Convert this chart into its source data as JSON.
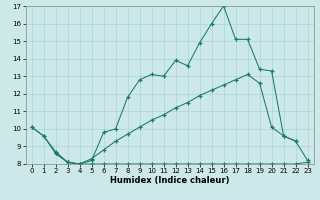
{
  "xlabel": "Humidex (Indice chaleur)",
  "bg_color": "#cce8e8",
  "line_color": "#1a7a6a",
  "grid_color": "#aad4d4",
  "xlim": [
    -0.5,
    23.5
  ],
  "ylim": [
    8,
    17
  ],
  "xticks": [
    0,
    1,
    2,
    3,
    4,
    5,
    6,
    7,
    8,
    9,
    10,
    11,
    12,
    13,
    14,
    15,
    16,
    17,
    18,
    19,
    20,
    21,
    22,
    23
  ],
  "yticks": [
    8,
    9,
    10,
    11,
    12,
    13,
    14,
    15,
    16,
    17
  ],
  "line1_x": [
    0,
    1,
    2,
    3,
    4,
    5,
    6,
    7,
    8,
    9,
    10,
    11,
    12,
    13,
    14,
    15,
    16,
    17,
    18,
    19,
    20,
    21,
    22,
    23
  ],
  "line1_y": [
    10.1,
    9.6,
    8.6,
    8.1,
    8.0,
    8.0,
    8.0,
    8.0,
    8.0,
    8.0,
    8.0,
    8.0,
    8.0,
    8.0,
    8.0,
    8.0,
    8.0,
    8.0,
    8.0,
    8.0,
    8.0,
    8.0,
    8.0,
    8.1
  ],
  "line2_x": [
    0,
    1,
    2,
    3,
    4,
    5,
    6,
    7,
    8,
    9,
    10,
    11,
    12,
    13,
    14,
    15,
    16,
    17,
    18,
    19,
    20,
    21,
    22,
    23
  ],
  "line2_y": [
    10.1,
    9.6,
    8.7,
    8.1,
    8.0,
    8.3,
    8.8,
    9.3,
    9.7,
    10.1,
    10.5,
    10.8,
    11.2,
    11.5,
    11.9,
    12.2,
    12.5,
    12.8,
    13.1,
    12.6,
    10.1,
    9.6,
    9.3,
    8.2
  ],
  "line3_x": [
    2,
    3,
    4,
    5,
    6,
    7,
    8,
    9,
    10,
    11,
    12,
    13,
    14,
    15,
    16,
    17,
    18,
    19,
    20,
    21,
    22
  ],
  "line3_y": [
    8.6,
    8.1,
    8.0,
    8.2,
    9.8,
    10.0,
    11.8,
    12.8,
    13.1,
    13.0,
    13.9,
    13.6,
    14.9,
    16.0,
    17.0,
    15.1,
    15.1,
    13.4,
    13.3,
    9.6,
    9.3
  ]
}
